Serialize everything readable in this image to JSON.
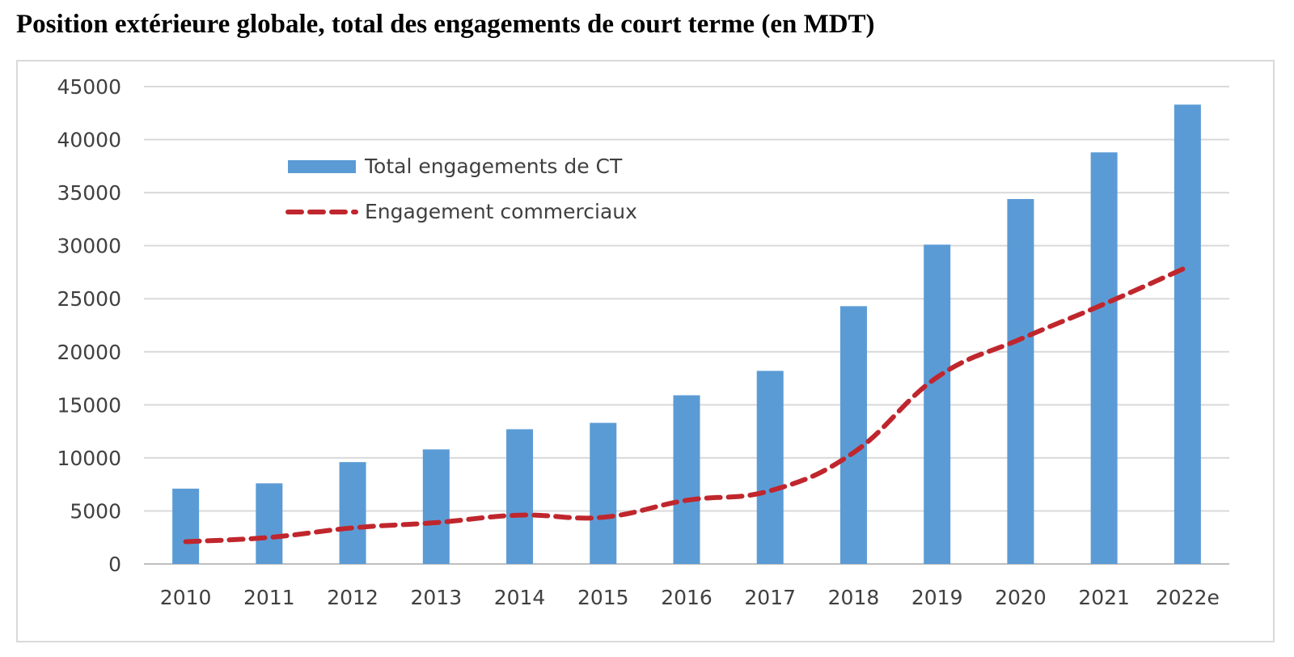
{
  "title": "Position extérieure globale, total des engagements de court terme (en MDT)",
  "chart_data": {
    "type": "bar",
    "title": "Position extérieure globale, total des engagements de court terme (en MDT)",
    "categories": [
      "2010",
      "2011",
      "2012",
      "2013",
      "2014",
      "2015",
      "2016",
      "2017",
      "2018",
      "2019",
      "2020",
      "2021",
      "2022e"
    ],
    "ylim": [
      0,
      45000
    ],
    "yticks": [
      "0",
      "5000",
      "10000",
      "15000",
      "20000",
      "25000",
      "30000",
      "35000",
      "40000",
      "45000"
    ],
    "grid": true,
    "legend_position": "top-left",
    "series": [
      {
        "name": "Total engagements de CT",
        "type": "bar",
        "color": "#5B9BD5",
        "values": [
          7100,
          7600,
          9600,
          10800,
          12700,
          13300,
          15900,
          18200,
          24300,
          30100,
          34400,
          38800,
          43300
        ]
      },
      {
        "name": "Engagement commerciaux",
        "type": "line",
        "style": "dashed",
        "color": "#C0262D",
        "values": [
          2100,
          2500,
          3400,
          3900,
          4600,
          4400,
          6000,
          6900,
          10500,
          17600,
          21200,
          24500,
          28000
        ]
      }
    ]
  }
}
